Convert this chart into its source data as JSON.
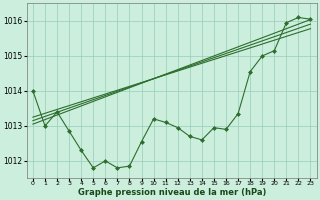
{
  "title": "Graphe pression niveau de la mer (hPa)",
  "background_color": "#cceedd",
  "grid_color": "#99ccbb",
  "line_color": "#2d6e2d",
  "xlim": [
    -0.5,
    23.5
  ],
  "ylim": [
    1011.5,
    1016.5
  ],
  "yticks": [
    1012,
    1013,
    1014,
    1015,
    1016
  ],
  "xticks": [
    0,
    1,
    2,
    3,
    4,
    5,
    6,
    7,
    8,
    9,
    10,
    11,
    12,
    13,
    14,
    15,
    16,
    17,
    18,
    19,
    20,
    21,
    22,
    23
  ],
  "hours": [
    0,
    1,
    2,
    3,
    4,
    5,
    6,
    7,
    8,
    9,
    10,
    11,
    12,
    13,
    14,
    15,
    16,
    17,
    18,
    19,
    20,
    21,
    22,
    23
  ],
  "line_actual": [
    1014.0,
    1013.0,
    1013.4,
    1012.85,
    1012.3,
    1011.8,
    1012.0,
    1011.8,
    1011.85,
    1012.55,
    1013.2,
    1013.1,
    1012.95,
    1012.7,
    1012.6,
    1012.95,
    1012.9,
    1013.35,
    1014.55,
    1015.0,
    1015.15,
    1015.95,
    1016.1,
    1016.05
  ],
  "line_trend1": [
    1013.05,
    1013.18,
    1013.31,
    1013.44,
    1013.57,
    1013.7,
    1013.83,
    1013.96,
    1014.09,
    1014.22,
    1014.35,
    1014.48,
    1014.61,
    1014.74,
    1014.87,
    1015.0,
    1015.13,
    1015.26,
    1015.39,
    1015.52,
    1015.65,
    1015.78,
    1015.91,
    1016.04
  ],
  "line_trend2": [
    1013.15,
    1013.27,
    1013.39,
    1013.51,
    1013.63,
    1013.75,
    1013.87,
    1013.99,
    1014.11,
    1014.23,
    1014.35,
    1014.47,
    1014.59,
    1014.71,
    1014.83,
    1014.95,
    1015.07,
    1015.19,
    1015.31,
    1015.43,
    1015.55,
    1015.67,
    1015.79,
    1015.91
  ],
  "line_trend3": [
    1013.25,
    1013.36,
    1013.47,
    1013.58,
    1013.69,
    1013.8,
    1013.91,
    1014.02,
    1014.13,
    1014.24,
    1014.35,
    1014.46,
    1014.57,
    1014.68,
    1014.79,
    1014.9,
    1015.01,
    1015.12,
    1015.23,
    1015.34,
    1015.45,
    1015.56,
    1015.67,
    1015.78
  ]
}
